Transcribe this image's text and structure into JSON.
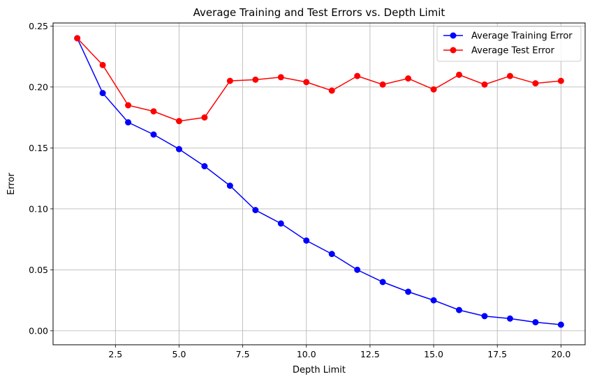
{
  "chart_data": {
    "type": "line",
    "title": "Average Training and Test Errors vs. Depth Limit",
    "xlabel": "Depth Limit",
    "ylabel": "Error",
    "xlim": [
      0.05,
      20.95
    ],
    "ylim": [
      -0.0115,
      0.2525
    ],
    "xticks": [
      2.5,
      5.0,
      7.5,
      10.0,
      12.5,
      15.0,
      17.5,
      20.0
    ],
    "xtick_labels": [
      "2.5",
      "5.0",
      "7.5",
      "10.0",
      "12.5",
      "15.0",
      "17.5",
      "20.0"
    ],
    "yticks": [
      0.0,
      0.05,
      0.1,
      0.15,
      0.2,
      0.25
    ],
    "ytick_labels": [
      "0.00",
      "0.05",
      "0.10",
      "0.15",
      "0.20",
      "0.25"
    ],
    "grid": true,
    "legend_position": "top-right",
    "x": [
      1,
      2,
      3,
      4,
      5,
      6,
      7,
      8,
      9,
      10,
      11,
      12,
      13,
      14,
      15,
      16,
      17,
      18,
      19,
      20
    ],
    "series": [
      {
        "name": "Average Training Error",
        "color": "#0000ff",
        "marker": "circle",
        "values": [
          0.24,
          0.195,
          0.171,
          0.161,
          0.149,
          0.135,
          0.119,
          0.099,
          0.088,
          0.074,
          0.063,
          0.05,
          0.04,
          0.032,
          0.025,
          0.017,
          0.012,
          0.01,
          0.007,
          0.005
        ]
      },
      {
        "name": "Average Test Error",
        "color": "#ff0000",
        "marker": "circle",
        "values": [
          0.24,
          0.218,
          0.185,
          0.18,
          0.172,
          0.175,
          0.205,
          0.206,
          0.208,
          0.204,
          0.197,
          0.209,
          0.202,
          0.207,
          0.198,
          0.21,
          0.202,
          0.209,
          0.203,
          0.205
        ]
      }
    ]
  }
}
